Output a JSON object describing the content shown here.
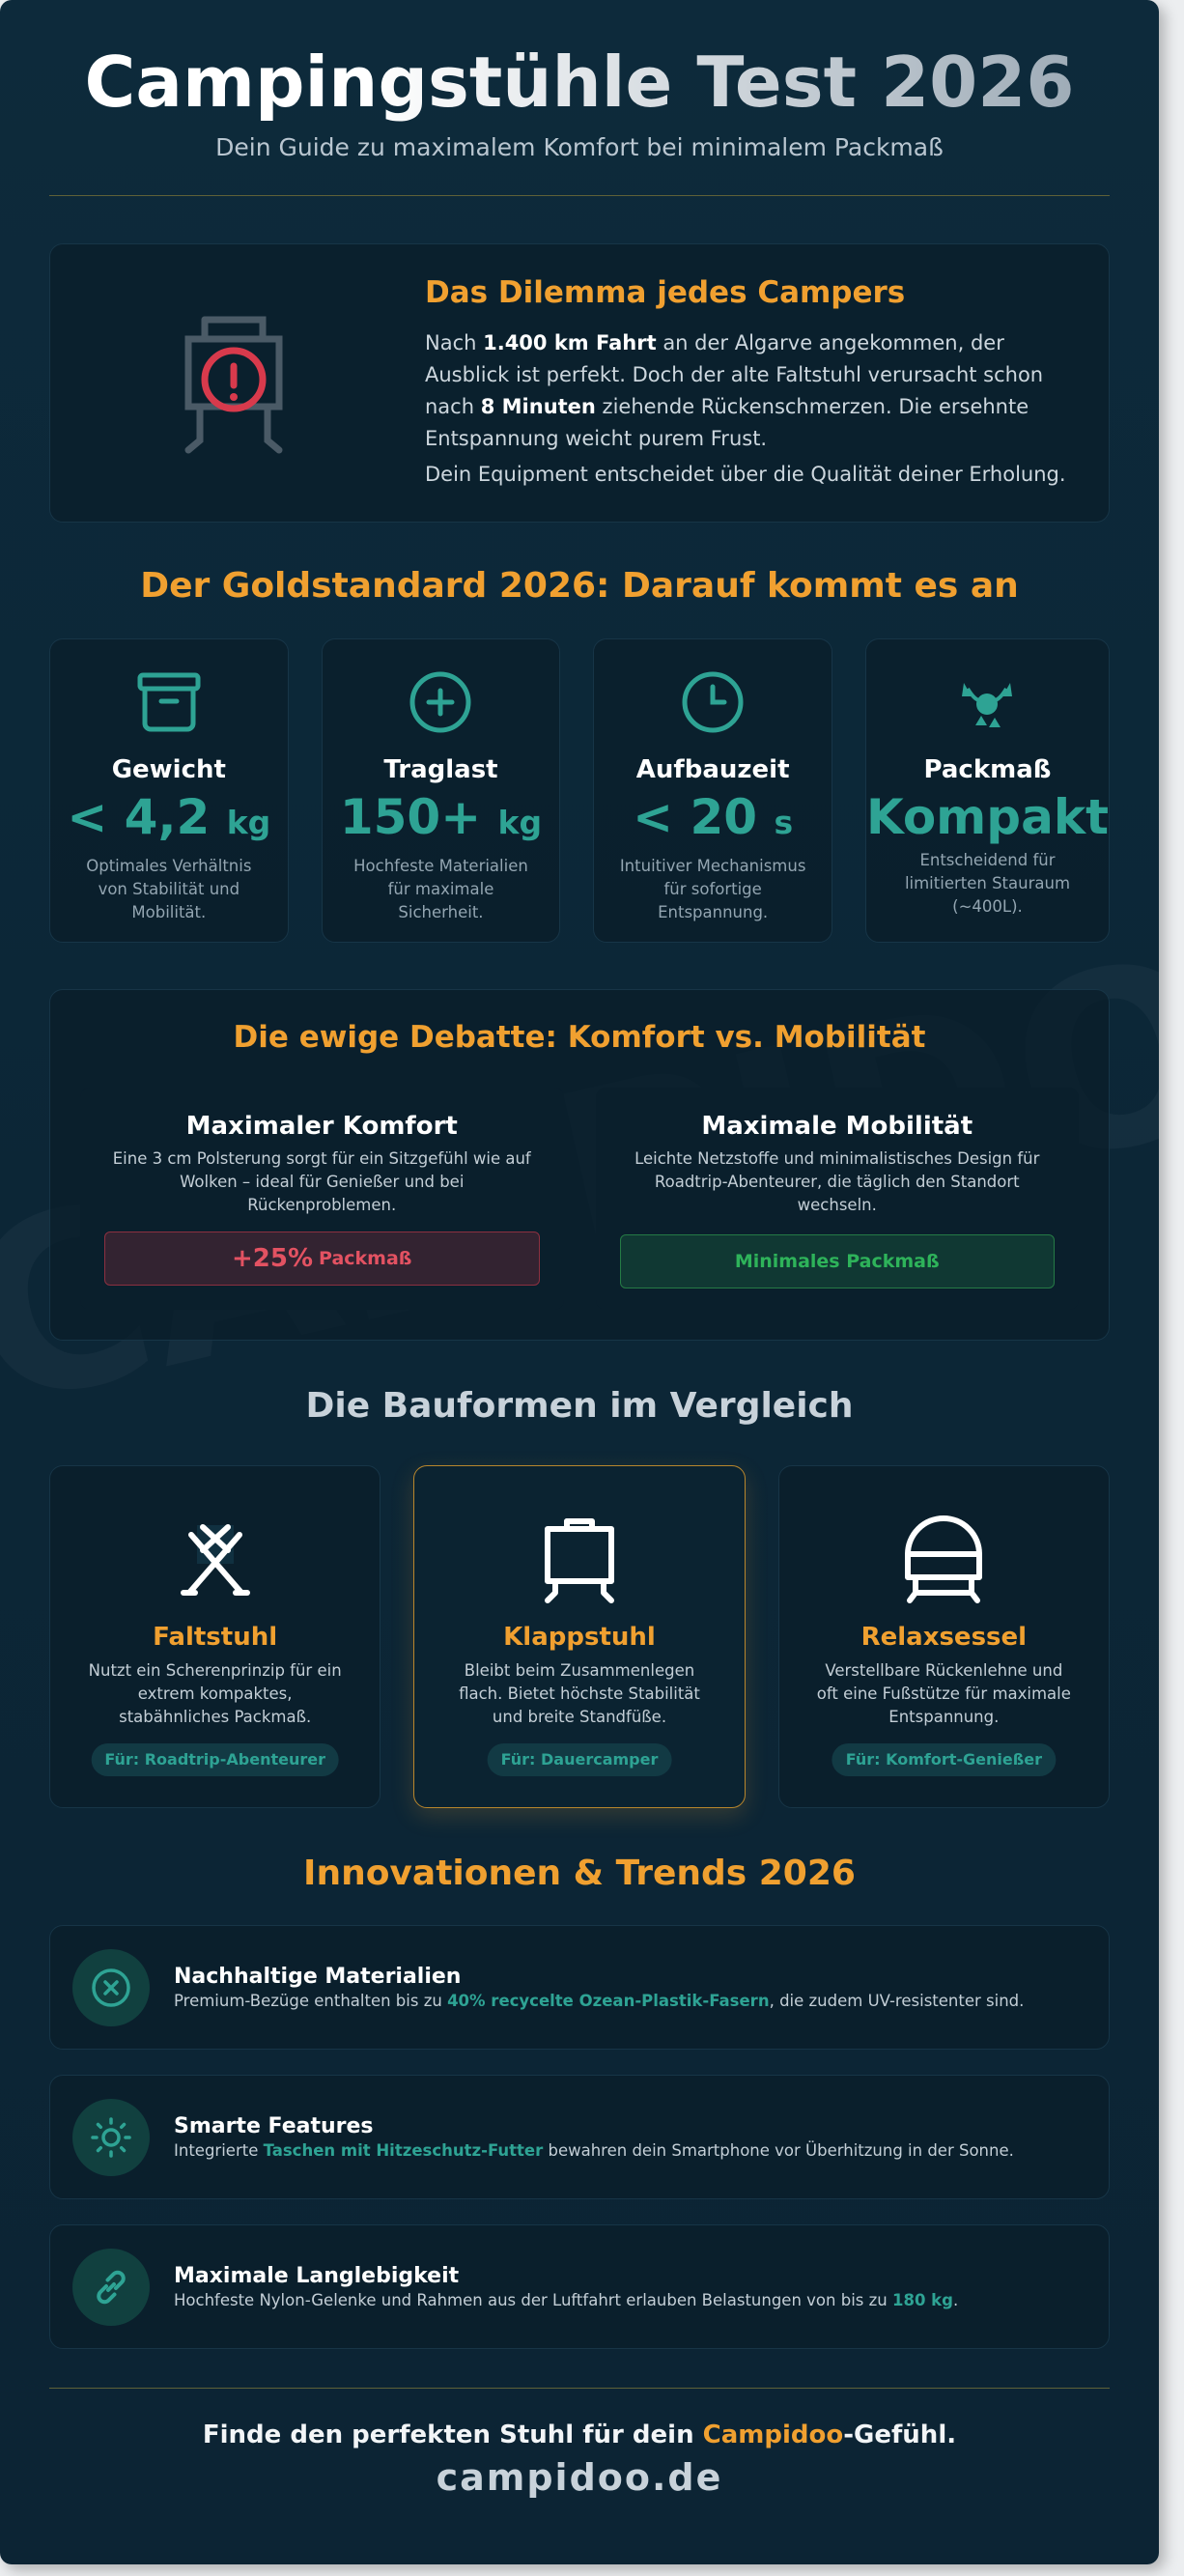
{
  "header": {
    "title": "Campingstühle Test 2026",
    "subtitle": "Dein Guide zu maximalem Komfort bei minimalem Packmaß"
  },
  "story": {
    "heading": "Das Dilemma jedes Campers",
    "paragraph": [
      "Nach ",
      "1.400 km Fahrt",
      " an der Algarve angekommen, der Ausblick ist perfekt. Doch der alte Faltstuhl verursacht schon nach ",
      "8 Minuten",
      " ziehende Rückenschmerzen. Die ersehnte Entspannung weicht purem Frust."
    ],
    "conclusion": "Dein Equipment entscheidet über die Qualität deiner Erholung."
  },
  "standards": {
    "heading": "Der Goldstandard 2026: Darauf kommt es an",
    "items": [
      {
        "label": "Gewicht",
        "value": "< 4,2",
        "unit": "kg",
        "description": "Optimales Verhältnis von Stabilität und Mobilität."
      },
      {
        "label": "Traglast",
        "value": "150+",
        "unit": "kg",
        "description": "Hochfeste Materialien für maximale Sicherheit."
      },
      {
        "label": "Aufbauzeit",
        "value": "< 20",
        "unit": "s",
        "description": "Intuitiver Mechanismus für sofortige Entspannung."
      },
      {
        "label": "Packmaß",
        "value": "Kompakt",
        "description": "Entscheidend für limitierten Stauraum (~400L)."
      }
    ]
  },
  "debate": {
    "heading": "Die ewige Debatte: Komfort vs. Mobilität",
    "options": [
      {
        "title": "Maximaler Komfort",
        "text": "Eine 3 cm Polsterung sorgt für ein Sitzgefühl wie auf Wolken – ideal für Genießer und bei Rückenproblemen.",
        "badge_value": "+25%",
        "badge_text": "Packmaß"
      },
      {
        "title": "Maximale Mobilität",
        "text": "Leichte Netzstoffe und minimalistisches Design für Roadtrip-Abenteurer, die täglich den Standort wechseln.",
        "badge_text": "Minimales Packmaß"
      }
    ]
  },
  "types": {
    "heading": "Die Bauformen im Vergleich",
    "items": [
      {
        "name": "Faltstuhl",
        "text": "Nutzt ein Scherenprinzip für ein extrem kompaktes, stabähnliches Packmaß.",
        "tag": "Für: Roadtrip-Abenteurer",
        "highlight": false
      },
      {
        "name": "Klappstuhl",
        "text": "Bleibt beim Zusammenlegen flach. Bietet höchste Stabilität und breite Standfüße.",
        "tag": "Für: Dauercamper",
        "highlight": true
      },
      {
        "name": "Relaxsessel",
        "text": "Verstellbare Rückenlehne und oft eine Fußstütze für maximale Entspannung.",
        "tag": "Für: Komfort-Genießer",
        "highlight": false
      }
    ]
  },
  "trends": {
    "heading": "Innovationen & Trends 2026",
    "items": [
      {
        "title": "Nachhaltige Materialien",
        "text": [
          "Premium-Bezüge enthalten bis zu ",
          "40% recycelte Ozean-Plastik-Fasern",
          ", die zudem UV-resistenter sind."
        ]
      },
      {
        "title": "Smarte Features",
        "text": [
          "Integrierte ",
          "Taschen mit Hitzeschutz-Futter",
          " bewahren dein Smartphone vor Überhitzung in der Sonne."
        ]
      },
      {
        "title": "Maximale Langlebigkeit",
        "text": [
          "Hochfeste Nylon-Gelenke und Rahmen aus der Luftfahrt erlauben Belastungen von bis zu ",
          "180 kg",
          "."
        ]
      }
    ]
  },
  "footer": {
    "tagline": [
      "Finde den perfekten Stuhl für dein ",
      "Campidoo",
      "-Gefühl."
    ],
    "domain": "campidoo.de"
  },
  "watermark": "CAMPIDOO."
}
